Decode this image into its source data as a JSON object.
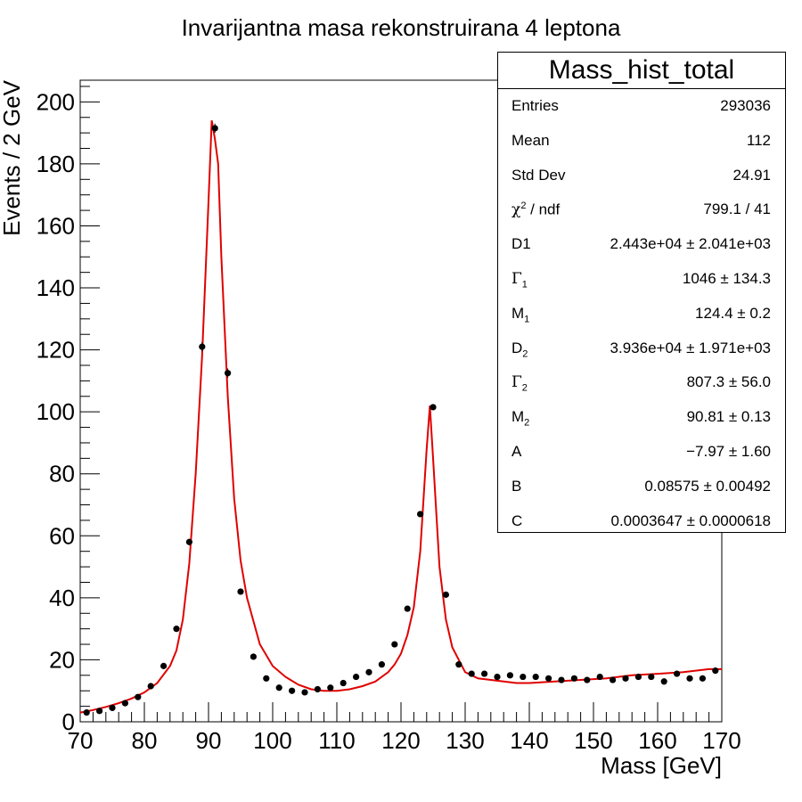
{
  "chart_data": {
    "type": "scatter",
    "title": "Invarijantna masa rekonstruirana 4 leptona",
    "xlabel": "Mass [GeV]",
    "ylabel": "Events / 2 GeV",
    "xlim": [
      70,
      170
    ],
    "ylim": [
      0,
      207
    ],
    "xticks": [
      70,
      80,
      90,
      100,
      110,
      120,
      130,
      140,
      150,
      160,
      170
    ],
    "yticks": [
      0,
      20,
      40,
      60,
      80,
      100,
      120,
      140,
      160,
      180,
      200
    ],
    "grid": false,
    "series": [
      {
        "x": [
          71,
          73,
          75,
          77,
          79,
          81,
          83,
          85,
          87,
          89,
          91,
          93,
          95,
          97,
          99,
          101,
          103,
          105,
          107,
          109,
          111,
          113,
          115,
          117,
          119,
          121,
          123,
          125,
          127,
          129,
          131,
          133,
          135,
          137,
          139,
          141,
          143,
          145,
          147,
          149,
          151,
          153,
          155,
          157,
          159,
          161,
          163,
          165,
          167,
          169
        ],
        "y": [
          3,
          3.5,
          4.5,
          6,
          8,
          11.5,
          18,
          30,
          58,
          121,
          191.5,
          112.5,
          42,
          21,
          14,
          11,
          10,
          9.5,
          10.5,
          11,
          12.5,
          14.5,
          16,
          18.5,
          25,
          36.5,
          67,
          101.5,
          41,
          18.5,
          15.5,
          15.5,
          14.5,
          15,
          14.5,
          14.5,
          14,
          13.5,
          14,
          13.5,
          14.5,
          13.5,
          14,
          14.5,
          14.5,
          13,
          15.5,
          14,
          14,
          16.5
        ],
        "errors": [
          0,
          0,
          0,
          0,
          0,
          0,
          0,
          0,
          1,
          1.5,
          1.5,
          1.5,
          0,
          0,
          0,
          0,
          0,
          0,
          0,
          0,
          0,
          0,
          0,
          0,
          0,
          0,
          0,
          0,
          0,
          0,
          0,
          0,
          0,
          0,
          0,
          0,
          0,
          0,
          0,
          0,
          0,
          0,
          0,
          0,
          0,
          0,
          0,
          0,
          0,
          0
        ]
      }
    ],
    "fit": {
      "x": [
        70,
        72,
        74,
        76,
        78,
        80,
        82,
        84,
        85,
        86,
        87,
        88,
        89,
        90,
        90.5,
        91,
        91.5,
        92,
        93,
        94,
        95,
        96,
        98,
        100,
        102,
        104,
        106,
        108,
        110,
        112,
        114,
        116,
        118,
        119,
        120,
        121,
        122,
        123,
        124,
        124.5,
        125,
        126,
        127,
        128,
        130,
        132,
        134,
        136,
        138,
        140,
        144,
        148,
        152,
        156,
        160,
        164,
        168,
        170
      ],
      "y": [
        3,
        3.8,
        4.8,
        6,
        7.5,
        9.5,
        12.5,
        18,
        23,
        33,
        51,
        80,
        118,
        168,
        194,
        188,
        180,
        150,
        105,
        72,
        52,
        40,
        25,
        18,
        14.5,
        12,
        10.5,
        10,
        10,
        10.5,
        11.5,
        13,
        16,
        18.5,
        22,
        28,
        37,
        55,
        88,
        102,
        85,
        50,
        33,
        24,
        16,
        14,
        13.5,
        13,
        12.5,
        12.5,
        13,
        13.5,
        14,
        15,
        15.5,
        16,
        17,
        17
      ]
    },
    "stats": {
      "title": "Mass_hist_total",
      "rows": [
        {
          "key": "Entries",
          "value": "293036"
        },
        {
          "key": "Mean",
          "value": "112"
        },
        {
          "key": "Std Dev",
          "value": "24.91"
        },
        {
          "key": "χ² / ndf",
          "value": "799.1 / 41"
        },
        {
          "key": "D1",
          "value": "2.443e+04 ± 2.041e+03"
        },
        {
          "key": "Γ₁",
          "value": "1046 ± 134.3"
        },
        {
          "key": "M₁",
          "value": "124.4 ± 0.2"
        },
        {
          "key": "D₂",
          "value": "3.936e+04 ± 1.971e+03"
        },
        {
          "key": "Γ₂",
          "value": "807.3 ± 56.0"
        },
        {
          "key": "M₂",
          "value": "90.81 ± 0.13"
        },
        {
          "key": "A",
          "value": "−7.97 ± 1.60"
        },
        {
          "key": "B",
          "value": "0.08575 ± 0.00492"
        },
        {
          "key": "C",
          "value": "0.0003647 ± 0.0000618"
        }
      ]
    },
    "colors": {
      "points": "#000000",
      "fit": "#e00000",
      "axes": "#000000"
    }
  }
}
